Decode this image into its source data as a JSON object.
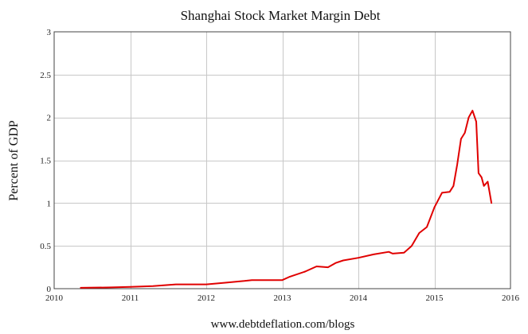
{
  "chart_data": {
    "type": "line",
    "title": "Shanghai Stock Market Margin Debt",
    "xlabel": "",
    "ylabel": "Percent of GDP",
    "footer": "www.debtdeflation.com/blogs",
    "xlim": [
      2010,
      2016
    ],
    "ylim": [
      0,
      3
    ],
    "x_ticks": [
      "2010",
      "2011",
      "2012",
      "2013",
      "2014",
      "2015",
      "2016"
    ],
    "y_ticks": [
      "0",
      "0.5",
      "1",
      "1.5",
      "2",
      "2.5",
      "3"
    ],
    "grid": true,
    "line_color": "#e00000",
    "series": [
      {
        "x": [
          2010.35,
          2010.75,
          2011.0,
          2011.3,
          2011.6,
          2012.0,
          2012.25,
          2012.5,
          2012.6,
          2012.75,
          2013.0,
          2013.1,
          2013.3,
          2013.45,
          2013.6,
          2013.7,
          2013.8,
          2014.0,
          2014.2,
          2014.4,
          2014.45,
          2014.6,
          2014.7,
          2014.8,
          2014.9,
          2015.0,
          2015.1,
          2015.2,
          2015.25,
          2015.3,
          2015.35,
          2015.4,
          2015.45,
          2015.5,
          2015.55,
          2015.58,
          2015.62,
          2015.65,
          2015.7,
          2015.72,
          2015.75
        ],
        "y": [
          0.01,
          0.015,
          0.02,
          0.03,
          0.05,
          0.05,
          0.07,
          0.09,
          0.1,
          0.1,
          0.1,
          0.14,
          0.2,
          0.26,
          0.25,
          0.3,
          0.33,
          0.36,
          0.4,
          0.43,
          0.41,
          0.42,
          0.5,
          0.65,
          0.72,
          0.95,
          1.12,
          1.13,
          1.2,
          1.45,
          1.75,
          1.82,
          2.0,
          2.08,
          1.95,
          1.35,
          1.3,
          1.2,
          1.25,
          1.15,
          1.0
        ]
      }
    ]
  }
}
